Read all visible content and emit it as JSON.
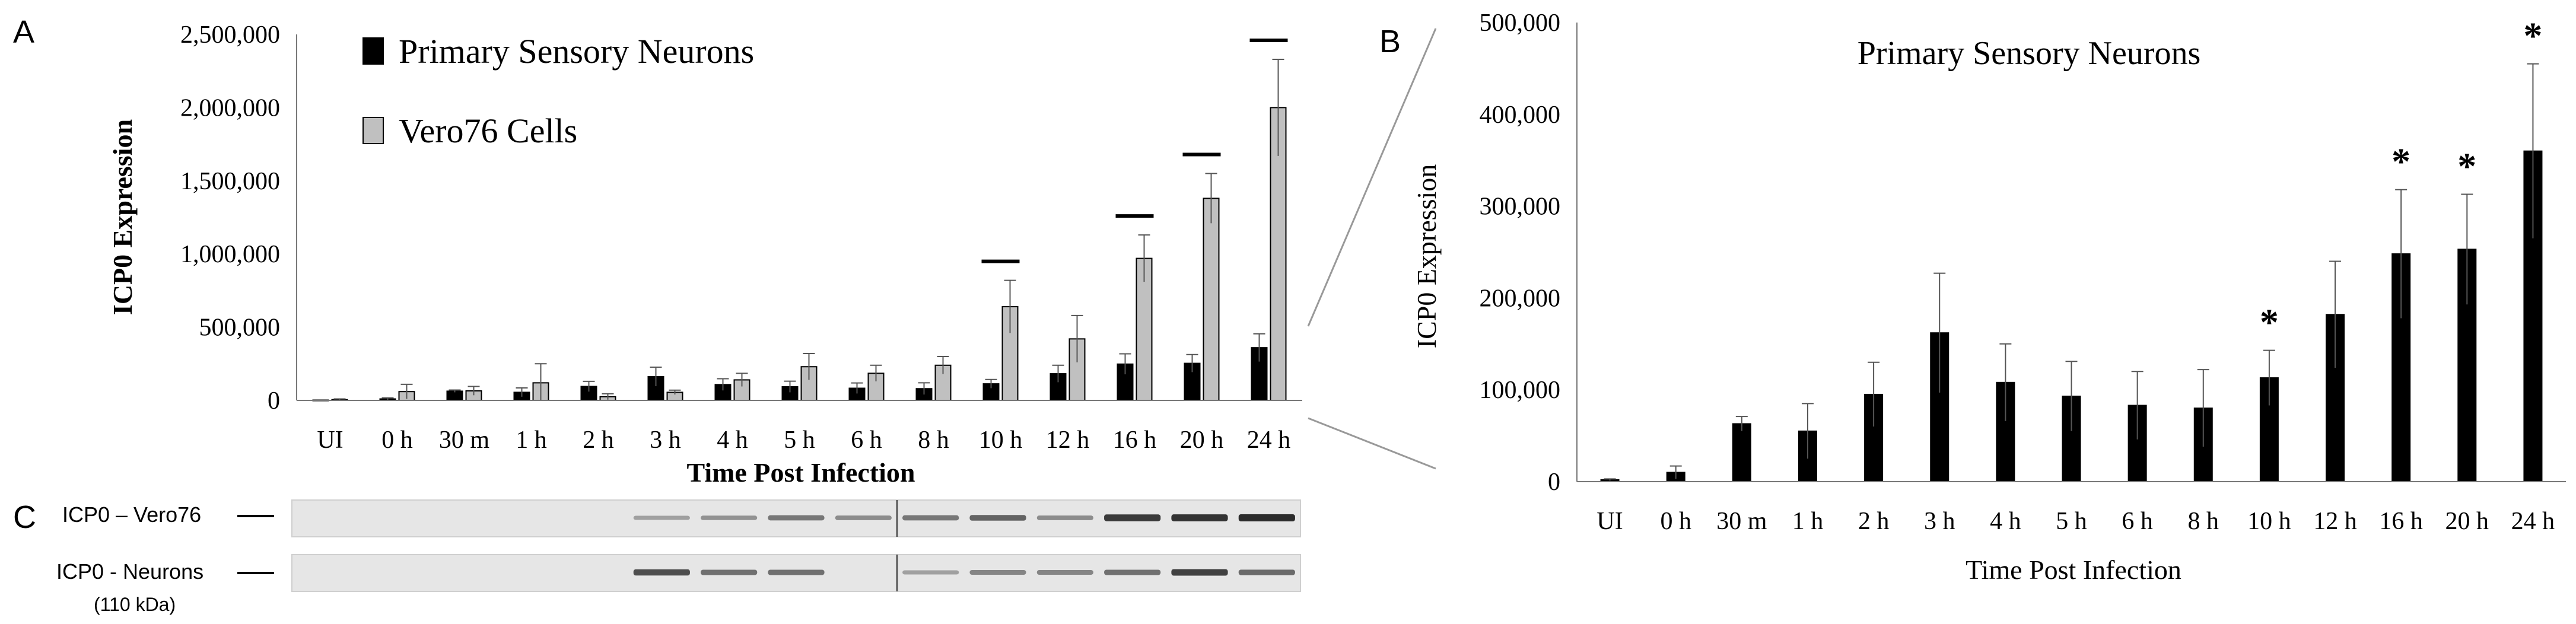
{
  "panel_labels": {
    "a": "A",
    "b": "B",
    "c": "C"
  },
  "colors": {
    "neurons": "#000000",
    "vero": "#c0c0c0",
    "blot_bg": "#e6e6e6",
    "band": "#222222"
  },
  "chart_data": [
    {
      "type": "bar",
      "panel": "A",
      "title": "",
      "xlabel": "Time Post Infection",
      "ylabel": "ICP0 Expression",
      "ylim": [
        0,
        2500000
      ],
      "yticks": [
        0,
        500000,
        1000000,
        1500000,
        2000000,
        2500000
      ],
      "ytick_labels": [
        "0",
        "500,000",
        "1,000,000",
        "1,500,000",
        "2,000,000",
        "2,500,000"
      ],
      "categories": [
        "UI",
        "0 h",
        "30 m",
        "1 h",
        "2 h",
        "3 h",
        "4 h",
        "5 h",
        "6 h",
        "8 h",
        "10 h",
        "12 h",
        "16 h",
        "20 h",
        "24 h"
      ],
      "series": [
        {
          "name": "Primary Sensory Neurons",
          "color": "#000000",
          "values": [
            2000,
            10000,
            63000,
            55000,
            95000,
            162000,
            108000,
            93000,
            83000,
            80000,
            113000,
            182000,
            248000,
            253000,
            360000
          ],
          "errors": [
            1000,
            7000,
            8000,
            30000,
            35000,
            65000,
            40000,
            38000,
            36000,
            40000,
            30000,
            58000,
            70000,
            60000,
            95000
          ]
        },
        {
          "name": "Vero76 Cells",
          "color": "#c0c0c0",
          "values": [
            5000,
            60000,
            65000,
            120000,
            25000,
            55000,
            140000,
            230000,
            185000,
            240000,
            640000,
            420000,
            970000,
            1380000,
            2000000
          ],
          "errors": [
            5000,
            50000,
            30000,
            130000,
            20000,
            15000,
            45000,
            90000,
            55000,
            60000,
            180000,
            160000,
            160000,
            170000,
            330000
          ]
        }
      ],
      "significance_marks": [
        "10 h",
        "16 h",
        "20 h",
        "24 h"
      ],
      "significance_symbol": "—"
    },
    {
      "type": "bar",
      "panel": "B",
      "title": "Primary Sensory Neurons",
      "xlabel": "Time Post Infection",
      "ylabel": "ICP0 Expression",
      "ylim": [
        0,
        500000
      ],
      "yticks": [
        0,
        100000,
        200000,
        300000,
        400000,
        500000
      ],
      "ytick_labels": [
        "0",
        "100,000",
        "200,000",
        "300,000",
        "400,000",
        "500,000"
      ],
      "categories": [
        "UI",
        "0 h",
        "30 m",
        "1 h",
        "2 h",
        "3 h",
        "4 h",
        "5 h",
        "6 h",
        "8 h",
        "10 h",
        "12 h",
        "16 h",
        "20 h",
        "24 h"
      ],
      "series": [
        {
          "values": [
            2000,
            10000,
            63000,
            55000,
            95000,
            162000,
            108000,
            93000,
            83000,
            80000,
            113000,
            182000,
            248000,
            253000,
            360000
          ],
          "errors": [
            1000,
            7000,
            8000,
            30000,
            35000,
            65000,
            42000,
            38000,
            37000,
            42000,
            30000,
            58000,
            70000,
            60000,
            95000
          ]
        }
      ],
      "significance_marks": [
        "10 h",
        "16 h",
        "20 h",
        "24 h"
      ],
      "significance_symbol": "*"
    }
  ],
  "blots": {
    "rows": [
      {
        "label": "ICP0 – Vero76",
        "intensities": [
          0,
          0,
          0,
          0,
          0,
          0.15,
          0.25,
          0.45,
          0.3,
          0.45,
          0.6,
          0.3,
          0.9,
          0.95,
          1.0
        ]
      },
      {
        "label": "ICP0 - Neurons",
        "intensities": [
          0,
          0,
          0,
          0,
          0,
          0.75,
          0.5,
          0.5,
          0,
          0.15,
          0.35,
          0.35,
          0.5,
          0.85,
          0.55
        ]
      }
    ],
    "size_label": "(110 kDa)"
  }
}
